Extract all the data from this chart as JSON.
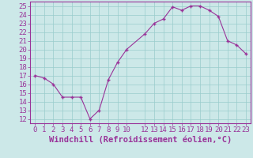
{
  "x": [
    0,
    1,
    2,
    3,
    4,
    5,
    6,
    7,
    8,
    9,
    10,
    12,
    13,
    14,
    15,
    16,
    17,
    18,
    19,
    20,
    21,
    22,
    23
  ],
  "y": [
    17.0,
    16.7,
    16.0,
    14.5,
    14.5,
    14.5,
    12.0,
    13.0,
    16.5,
    18.5,
    20.0,
    21.8,
    23.0,
    23.5,
    24.9,
    24.5,
    25.0,
    25.0,
    24.5,
    23.8,
    21.0,
    20.5,
    19.5
  ],
  "line_color": "#993399",
  "bg_color": "#cce8e8",
  "grid_color": "#99cccc",
  "xlabel": "Windchill (Refroidissement éolien,°C)",
  "ylim": [
    11.5,
    25.5
  ],
  "xlim": [
    -0.5,
    23.5
  ],
  "yticks": [
    12,
    13,
    14,
    15,
    16,
    17,
    18,
    19,
    20,
    21,
    22,
    23,
    24,
    25
  ],
  "xticks": [
    0,
    1,
    2,
    3,
    4,
    5,
    6,
    7,
    8,
    9,
    10,
    12,
    13,
    14,
    15,
    16,
    17,
    18,
    19,
    20,
    21,
    22,
    23
  ],
  "xtick_labels": [
    "0",
    "1",
    "2",
    "3",
    "4",
    "5",
    "6",
    "7",
    "8",
    "9",
    "10",
    "12",
    "13",
    "14",
    "15",
    "16",
    "17",
    "18",
    "19",
    "20",
    "21",
    "22",
    "23"
  ],
  "font_color": "#993399",
  "font_size": 6.5,
  "xlabel_fontsize": 7.5
}
